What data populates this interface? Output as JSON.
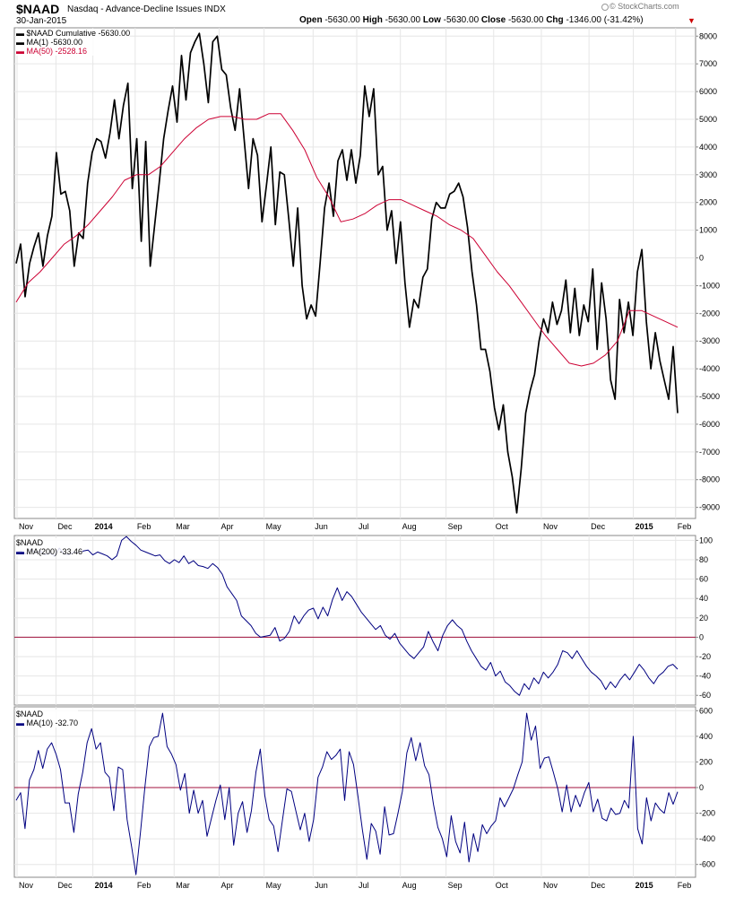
{
  "header": {
    "symbol": "$NAAD",
    "description": "Nasdaq - Advance-Decline Issues INDX",
    "date": "30-Jan-2015",
    "open_label": "Open",
    "open": "-5630.00",
    "high_label": "High",
    "high": "-5630.00",
    "low_label": "Low",
    "low": "-5630.00",
    "close_label": "Close",
    "close": "-5630.00",
    "chg_label": "Chg",
    "chg": "-1346.00 (-31.42%)",
    "brand": "© StockCharts.com",
    "colors": {
      "down": "#cc0000"
    }
  },
  "chart_data": [
    {
      "type": "line",
      "legend": [
        "$NAAD Cumulative -5630.00",
        "MA(1) -5630.00",
        "MA(50) -2528.16"
      ],
      "x_tick_labels": [
        "Nov",
        "Dec",
        "2014",
        "Feb",
        "Mar",
        "Apr",
        "May",
        "Jun",
        "Jul",
        "Aug",
        "Sep",
        "Oct",
        "Nov",
        "Dec",
        "2015",
        "Feb"
      ],
      "y_tick_labels": [
        "8000",
        "7000",
        "6000",
        "5000",
        "4000",
        "3000",
        "2000",
        "1000",
        "0",
        "-1000",
        "-2000",
        "-3000",
        "-4000",
        "-5000",
        "-6000",
        "-7000",
        "-8000",
        "-9000"
      ],
      "ylim": [
        -9400,
        8300
      ],
      "grid": true,
      "legend_position": "top-left",
      "series": [
        {
          "name": "MA(1)",
          "color": "#000000",
          "values": [
            -200,
            500,
            -1400,
            -200,
            400,
            900,
            -300,
            800,
            1500,
            3800,
            2300,
            2400,
            1700,
            -300,
            900,
            700,
            2700,
            3800,
            4300,
            4200,
            3600,
            4500,
            5700,
            4300,
            5500,
            6300,
            2500,
            4300,
            600,
            4200,
            -300,
            1200,
            2700,
            4300,
            5300,
            6200,
            4900,
            7300,
            5700,
            7400,
            7800,
            8100,
            7000,
            5600,
            7800,
            8000,
            6800,
            6600,
            5400,
            4600,
            6100,
            4300,
            2500,
            4300,
            3700,
            1300,
            2600,
            4000,
            1200,
            3100,
            3000,
            1400,
            -300,
            1800,
            -1000,
            -2200,
            -1700,
            -2100,
            -200,
            1800,
            2700,
            1500,
            3500,
            3900,
            2800,
            3900,
            2700,
            3700,
            6200,
            5100,
            6100,
            3000,
            3300,
            1000,
            1700,
            -200,
            1300,
            -900,
            -2500,
            -1500,
            -1800,
            -700,
            -400,
            1400,
            2000,
            1800,
            1800,
            2300,
            2400,
            2700,
            2200,
            1100,
            -500,
            -1700,
            -3300,
            -3300,
            -4100,
            -5400,
            -6200,
            -5300,
            -7000,
            -7900,
            -9200,
            -7600,
            -5600,
            -4800,
            -4200,
            -3000,
            -2200,
            -2700,
            -1600,
            -2400,
            -1900,
            -800,
            -2700,
            -1100,
            -2800,
            -1700,
            -2300,
            -400,
            -3300,
            -900,
            -2200,
            -4400,
            -5100,
            -1500,
            -2700,
            -1600,
            -2800,
            -500,
            300,
            -2300,
            -4000,
            -2700,
            -3700,
            -4400,
            -5100,
            -3200,
            -5600
          ]
        },
        {
          "name": "MA(50)",
          "color": "#cc0033",
          "values": [
            -1600,
            -900,
            -500,
            0,
            500,
            800,
            1200,
            1700,
            2200,
            2800,
            3000,
            3000,
            3300,
            3800,
            4300,
            4700,
            5000,
            5100,
            5100,
            5000,
            5000,
            5200,
            5200,
            4600,
            3900,
            2900,
            2200,
            1300,
            1400,
            1600,
            1900,
            2100,
            2100,
            1900,
            1700,
            1500,
            1200,
            1000,
            700,
            100,
            -500,
            -1000,
            -1600,
            -2200,
            -2800,
            -3300,
            -3800,
            -3900,
            -3800,
            -3500,
            -3000,
            -1900,
            -1900,
            -2100,
            -2300,
            -2500
          ]
        }
      ]
    },
    {
      "type": "line",
      "legend": [
        "$NAAD",
        "MA(200) -33.46"
      ],
      "x_tick_labels": [],
      "y_tick_labels": [
        "100",
        "80",
        "60",
        "40",
        "20",
        "0",
        "-20",
        "-40",
        "-60"
      ],
      "ylim": [
        -70,
        105
      ],
      "grid": true,
      "reference_line": 0,
      "series": [
        {
          "name": "MA(200)",
          "color": "#000080",
          "values": [
            88,
            89,
            86,
            91,
            87,
            89,
            85,
            87,
            84,
            92,
            86,
            85,
            88,
            87,
            89,
            90,
            85,
            88,
            86,
            84,
            80,
            84,
            100,
            104,
            99,
            95,
            90,
            88,
            86,
            84,
            85,
            79,
            76,
            80,
            77,
            84,
            76,
            79,
            74,
            73,
            71,
            76,
            72,
            65,
            52,
            45,
            38,
            22,
            17,
            12,
            4,
            0,
            1,
            2,
            10,
            -4,
            -1,
            6,
            22,
            14,
            22,
            28,
            30,
            19,
            31,
            22,
            39,
            51,
            38,
            47,
            42,
            34,
            26,
            20,
            14,
            8,
            12,
            2,
            -2,
            4,
            -6,
            -12,
            -18,
            -22,
            -16,
            -10,
            6,
            -5,
            -14,
            2,
            12,
            18,
            12,
            8,
            -4,
            -14,
            -22,
            -30,
            -34,
            -26,
            -40,
            -35,
            -46,
            -50,
            -56,
            -60,
            -48,
            -54,
            -42,
            -48,
            -36,
            -42,
            -36,
            -28,
            -14,
            -16,
            -22,
            -14,
            -22,
            -30,
            -36,
            -40,
            -45,
            -54,
            -46,
            -52,
            -44,
            -38,
            -44,
            -36,
            -28,
            -34,
            -42,
            -48,
            -40,
            -36,
            -30,
            -28,
            -33
          ]
        }
      ]
    },
    {
      "type": "line",
      "legend": [
        "$NAAD",
        "MA(10) -32.70"
      ],
      "x_tick_labels": [
        "Nov",
        "Dec",
        "2014",
        "Feb",
        "Mar",
        "Apr",
        "May",
        "Jun",
        "Jul",
        "Aug",
        "Sep",
        "Oct",
        "Nov",
        "Dec",
        "2015",
        "Feb"
      ],
      "y_tick_labels": [
        "600",
        "400",
        "200",
        "0",
        "-200",
        "-400",
        "-600"
      ],
      "ylim": [
        -700,
        630
      ],
      "grid": true,
      "reference_line": 0,
      "series": [
        {
          "name": "MA(10)",
          "color": "#000080",
          "values": [
            -100,
            -40,
            -320,
            60,
            140,
            290,
            150,
            300,
            350,
            260,
            140,
            -120,
            -120,
            -350,
            -50,
            120,
            350,
            460,
            300,
            350,
            120,
            80,
            -180,
            160,
            140,
            -250,
            -460,
            -680,
            -350,
            0,
            320,
            390,
            400,
            580,
            320,
            260,
            180,
            -20,
            110,
            -200,
            -20,
            -200,
            -100,
            -380,
            -240,
            -100,
            20,
            -250,
            0,
            -450,
            -200,
            -110,
            -350,
            -180,
            120,
            300,
            -60,
            -250,
            -300,
            -500,
            -250,
            -10,
            -30,
            -180,
            -330,
            -200,
            -420,
            -250,
            80,
            160,
            280,
            220,
            250,
            300,
            -100,
            280,
            180,
            -70,
            -330,
            -560,
            -280,
            -340,
            -520,
            -150,
            -370,
            -360,
            -200,
            -30,
            270,
            390,
            210,
            350,
            170,
            100,
            -130,
            -310,
            -400,
            -540,
            -220,
            -420,
            -510,
            -270,
            -580,
            -360,
            -500,
            -290,
            -360,
            -300,
            -260,
            -80,
            -150,
            -80,
            -10,
            100,
            200,
            580,
            370,
            480,
            150,
            230,
            240,
            120,
            -10,
            -190,
            20,
            -190,
            -60,
            -150,
            -40,
            40,
            -190,
            -90,
            -240,
            -260,
            -160,
            -210,
            -200,
            -100,
            -160,
            400,
            -320,
            -440,
            -80,
            -260,
            -120,
            -170,
            -200,
            -40,
            -130,
            -33
          ]
        }
      ]
    }
  ]
}
